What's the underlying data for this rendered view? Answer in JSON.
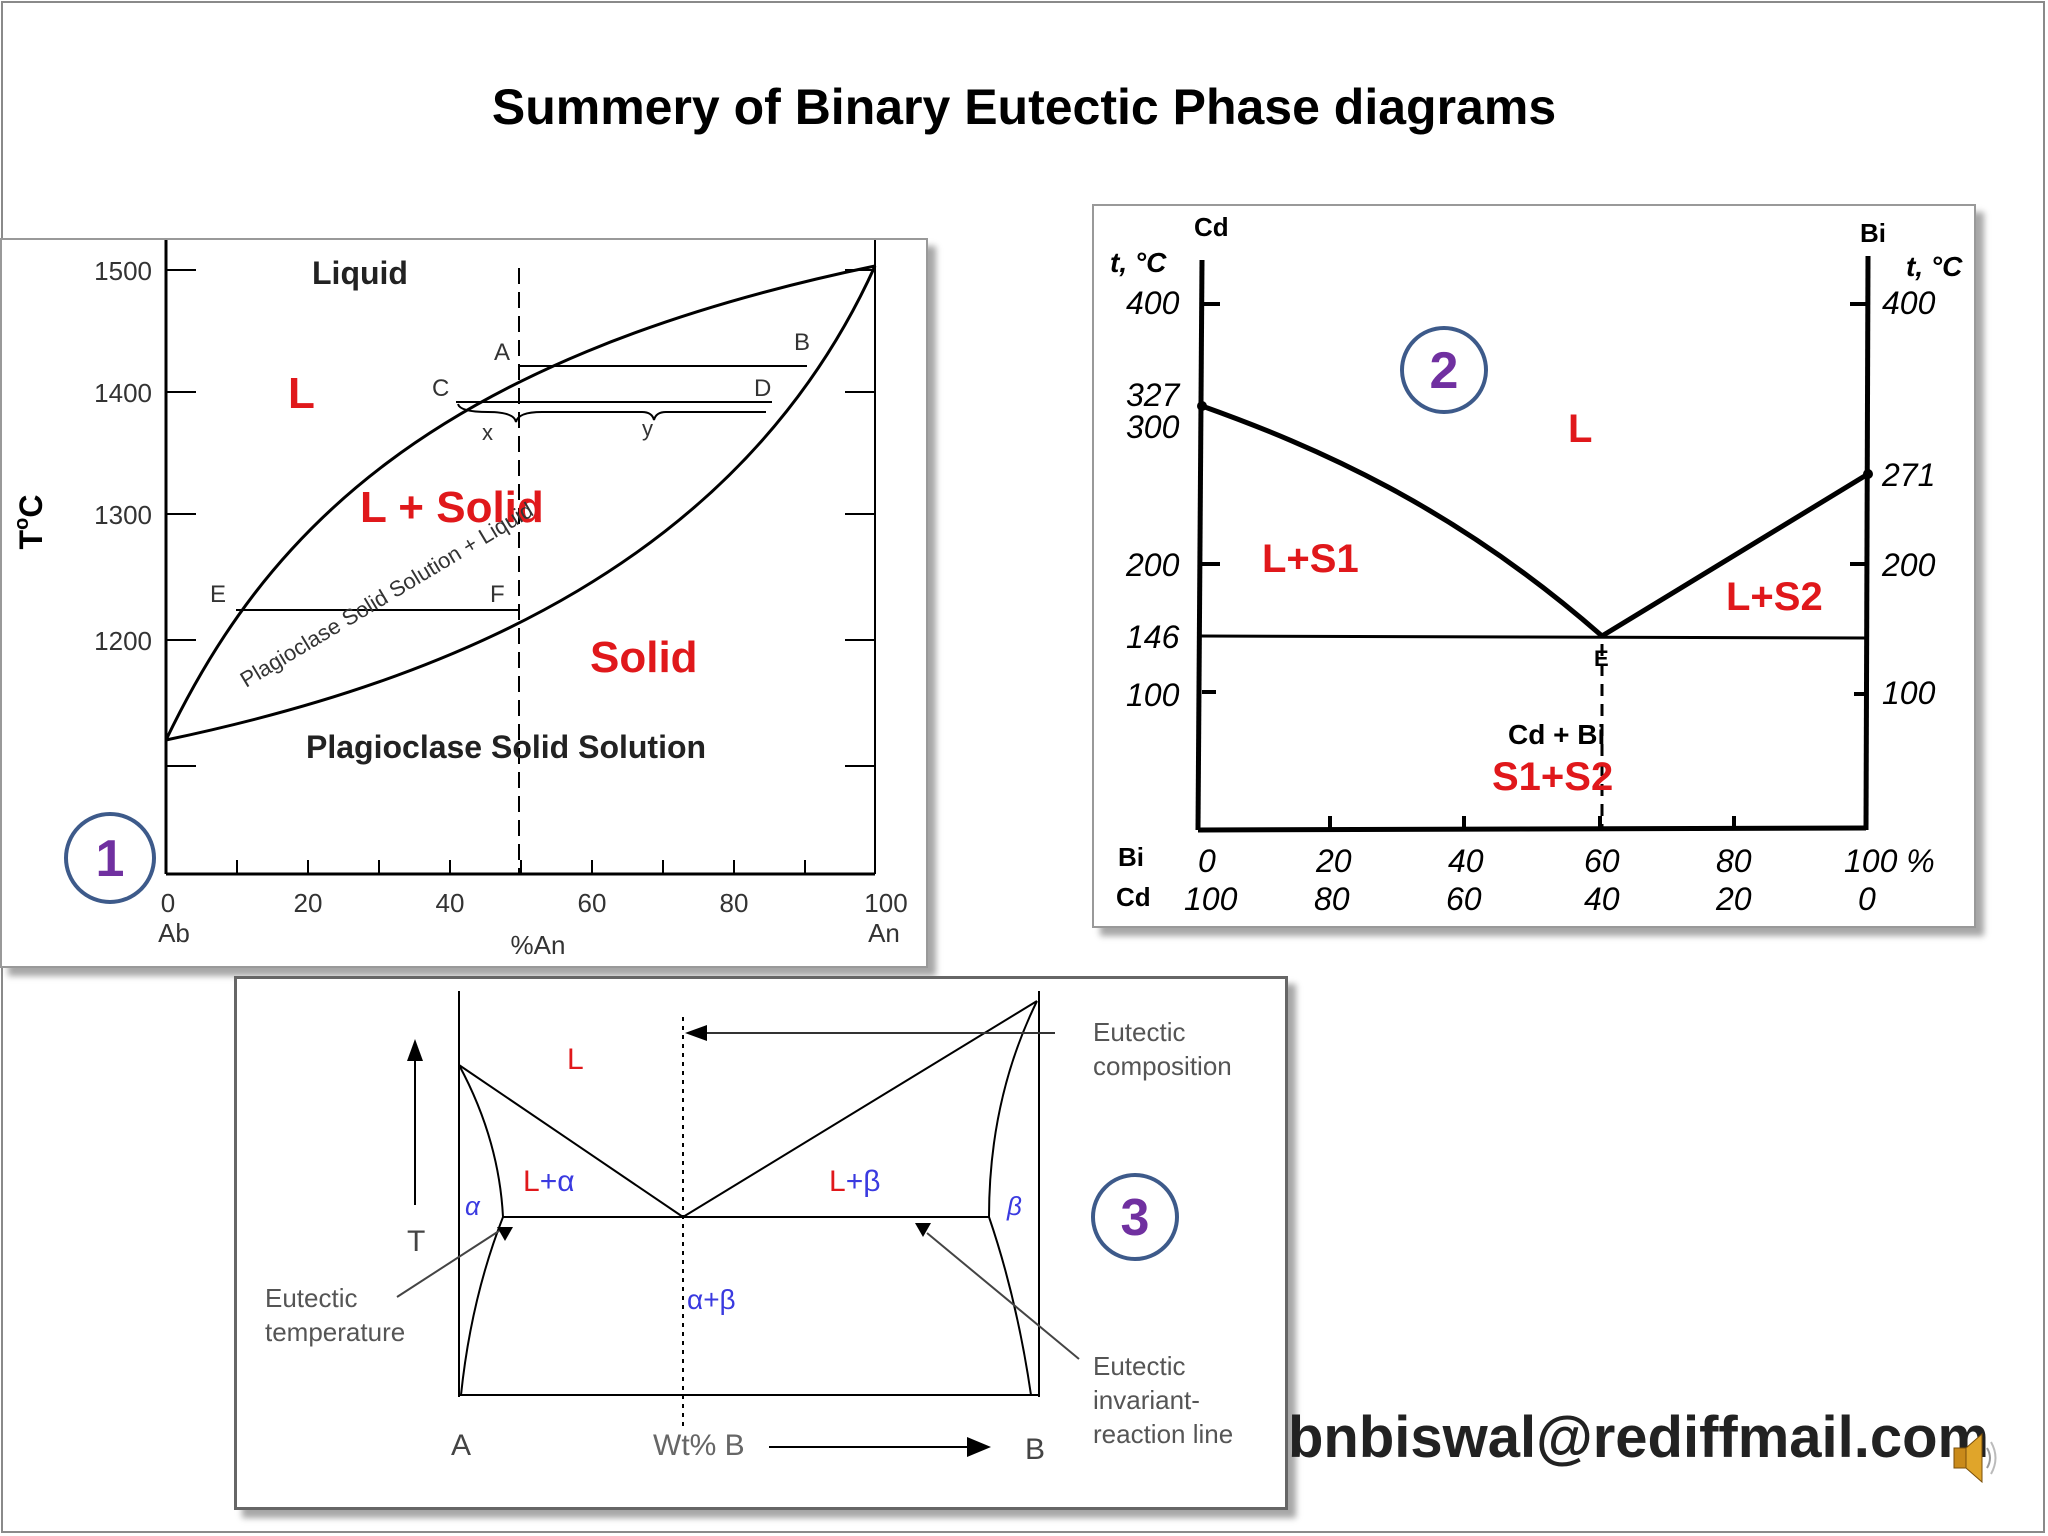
{
  "slide": {
    "title": "Summery of Binary Eutectic Phase diagrams",
    "footer_email": "bnbiswal@rediffmail.com",
    "speaker_icon": "speaker-icon"
  },
  "diagram1": {
    "badge": "1",
    "y_axis_label": "T",
    "y_axis_sup": "o",
    "y_axis_unit": "C",
    "y_ticks": [
      "1500",
      "1400",
      "1300",
      "1200"
    ],
    "x_ticks": [
      "0",
      "20",
      "40",
      "60",
      "80",
      "100"
    ],
    "x_left_end": "Ab",
    "x_right_end": "An",
    "x_label": "%An",
    "label_liquid": "Liquid",
    "label_L": "L",
    "label_L_solid": "L + Solid",
    "label_solid": "Solid",
    "label_plag_ss": "Plagioclase Solid Solution",
    "label_plag_ss_liquid": "Plagioclase Solid Solution + Liquid",
    "point_A": "A",
    "point_B": "B",
    "point_C": "C",
    "point_D": "D",
    "point_E": "E",
    "point_F": "F",
    "point_x": "x",
    "point_y": "y",
    "colors": {
      "phase_label": "#e0181b",
      "badge_ring": "#3d5a8a",
      "badge_text": "#7030a0"
    }
  },
  "diagram2": {
    "badge": "2",
    "left_element": "Cd",
    "right_element": "Bi",
    "temp_label_left": "t, °C",
    "temp_label_right": "t, °C",
    "left_ticks": [
      "400",
      "327",
      "300",
      "200",
      "146",
      "100"
    ],
    "right_ticks": [
      "400",
      "271",
      "200",
      "100"
    ],
    "bi_row_label": "Bi",
    "cd_row_label": "Cd",
    "bi_values": [
      "0",
      "20",
      "40",
      "60",
      "80",
      "100 %"
    ],
    "cd_values": [
      "100",
      "80",
      "60",
      "40",
      "20",
      "0"
    ],
    "label_L": "L",
    "label_L_S1": "L+S1",
    "label_L_S2": "L+S2",
    "label_E": "E",
    "label_cd_bi": "Cd + Bi",
    "label_S1_S2": "S1+S2",
    "colors": {
      "phase_label": "#e0181b"
    }
  },
  "diagram3": {
    "badge": "3",
    "label_L": "L",
    "label_L_alpha_L": "L",
    "label_L_alpha_rest": "+α",
    "label_L_beta_L": "L",
    "label_L_beta_rest": "+β",
    "label_alpha": "α",
    "label_beta": "β",
    "label_alpha_beta": "α+β",
    "label_T": "T",
    "label_A": "A",
    "label_B": "B",
    "label_wt": "Wt% B",
    "callout_eutectic_composition": [
      "Eutectic",
      "composition"
    ],
    "callout_eutectic_temperature": [
      "Eutectic",
      "temperature"
    ],
    "callout_invariant": [
      "Eutectic",
      "invariant-",
      "reaction line"
    ],
    "colors": {
      "liquid_label": "#e0181b",
      "solid_label": "#3a3ae0"
    }
  }
}
